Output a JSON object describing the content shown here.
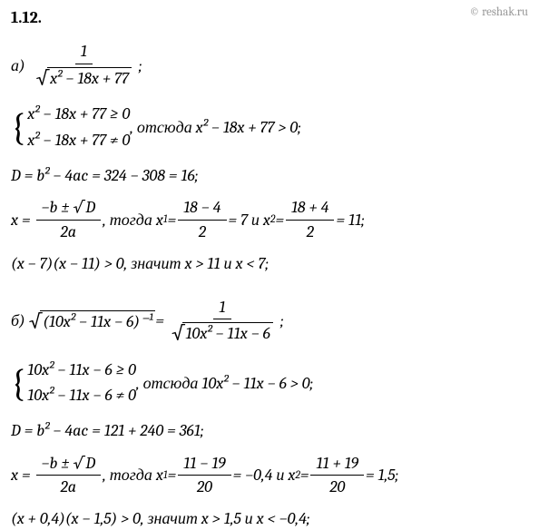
{
  "watermark": "© reshak.ru",
  "header": "1.12.",
  "partA": {
    "label": "а)",
    "expr_num": "1",
    "expr_den_body": "x² − 18x + 77",
    "semicolon": ";",
    "sys1": "x² − 18x + 77 ≥ 0",
    "sys2": "x² − 18x + 77 ≠ 0",
    "sys_after": ", отсюда x² − 18x + 77 > 0;",
    "disc": "D = b² − 4ac = 324 − 308 = 16;",
    "x_lhs": "x =",
    "x_num": "−b ± √D",
    "x_den": "2a",
    "x_mid": ", тогда x",
    "x1_sub": "1",
    "x1_eq": " = ",
    "x1_num": "18 − 4",
    "x1_den": "2",
    "x1_res": " = 7  и  x",
    "x2_sub": "2",
    "x2_eq": " = ",
    "x2_num": "18 + 4",
    "x2_den": "2",
    "x2_res": " = 11;",
    "final": "(x − 7)(x − 11) > 0, значит  x > 11  и  x < 7;"
  },
  "partB": {
    "label": "б)",
    "lhs_body": "(10x² − 11x − 6)⁻¹",
    "eq": " = ",
    "rhs_num": "1",
    "rhs_den_body": "10x² − 11x − 6",
    "semicolon": ";",
    "sys1": "10x² − 11x − 6 ≥ 0",
    "sys2": "10x² − 11x − 6 ≠ 0",
    "sys_after": ", отсюда 10x² − 11x − 6 > 0;",
    "disc": "D = b² − 4ac = 121 + 240 = 361;",
    "x_lhs": "x =",
    "x_num": "−b ± √D",
    "x_den": "2a",
    "x_mid": ", тогда x",
    "x1_sub": "1",
    "x1_eq": " = ",
    "x1_num": "11 − 19",
    "x1_den": "20",
    "x1_res": " = −0,4  и  x",
    "x2_sub": "2",
    "x2_eq": " = ",
    "x2_num": "11 + 19",
    "x2_den": "20",
    "x2_res": " = 1,5;",
    "final": "(x + 0,4)(x − 1,5) > 0, значит  x > 1,5  и  x < −0,4;"
  }
}
